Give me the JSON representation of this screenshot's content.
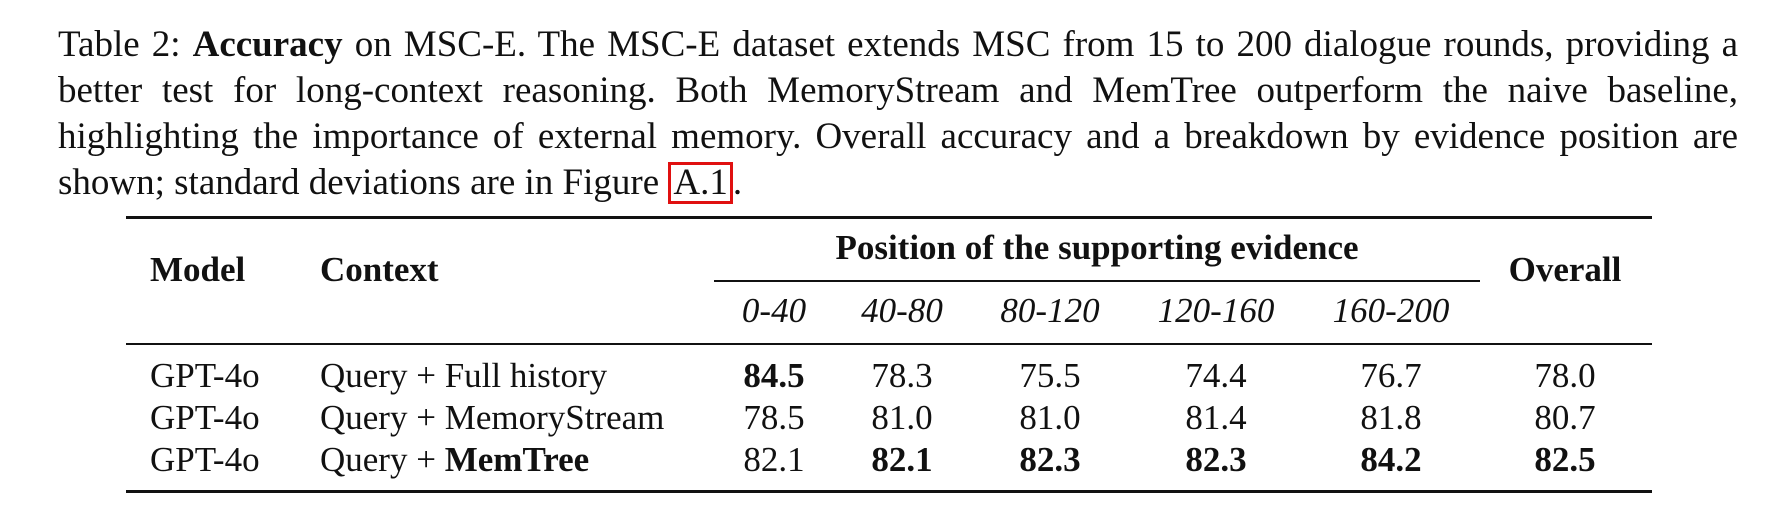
{
  "caption": {
    "label": "Table 2:",
    "bold_term": "Accuracy",
    "text_before_ref": "on MSC-E. The MSC-E dataset extends MSC from 15 to 200 dialogue rounds, providing a better test for long-context reasoning. Both MemoryStream and MemTree outperform the naive baseline, highlighting the importance of external memory. Overall accuracy and a breakdown by evidence position are shown; standard deviations are in Figure",
    "figure_ref": "A.1",
    "end": "."
  },
  "table": {
    "headers": {
      "model": "Model",
      "context": "Context",
      "position_group": "Position of the supporting evidence",
      "overall": "Overall",
      "positions": [
        "0-40",
        "40-80",
        "80-120",
        "120-160",
        "160-200"
      ]
    },
    "rows": [
      {
        "model": "GPT-4o",
        "context_prefix": "Query + ",
        "context_name": "Full history",
        "context_name_bold": false,
        "values": [
          "84.5",
          "78.3",
          "75.5",
          "74.4",
          "76.7"
        ],
        "bold": [
          true,
          false,
          false,
          false,
          false
        ],
        "overall": "78.0",
        "overall_bold": false
      },
      {
        "model": "GPT-4o",
        "context_prefix": "Query + ",
        "context_name": "MemoryStream",
        "context_name_bold": false,
        "values": [
          "78.5",
          "81.0",
          "81.0",
          "81.4",
          "81.8"
        ],
        "bold": [
          false,
          false,
          false,
          false,
          false
        ],
        "overall": "80.7",
        "overall_bold": false
      },
      {
        "model": "GPT-4o",
        "context_prefix": "Query + ",
        "context_name": "MemTree",
        "context_name_bold": true,
        "values": [
          "82.1",
          "82.1",
          "82.3",
          "82.3",
          "84.2"
        ],
        "bold": [
          false,
          true,
          true,
          true,
          true
        ],
        "overall": "82.5",
        "overall_bold": true
      }
    ]
  },
  "colors": {
    "ref_box": "#e01010",
    "text": "#111111"
  }
}
